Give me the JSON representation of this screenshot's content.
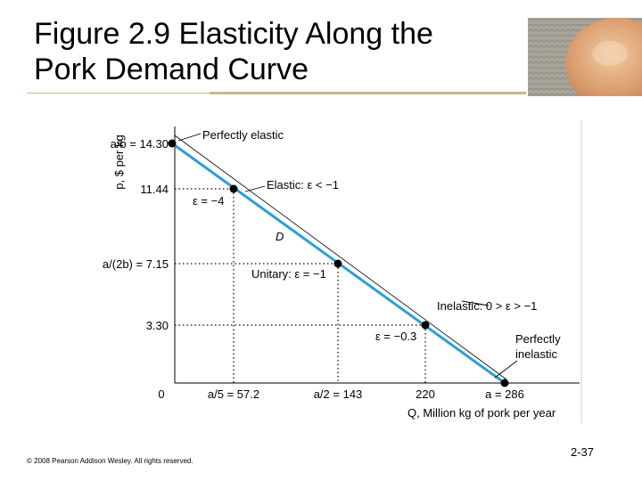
{
  "slide": {
    "title_line1": "Figure 2.9  Elasticity Along the",
    "title_line2": "Pork Demand Curve",
    "copyright": "© 2008 Pearson Addison Wesley. All rights reserved.",
    "slide_number": "2-37"
  },
  "colors": {
    "demand_line": "#2a9fd8",
    "title_rule": "#c8b98a"
  },
  "chart_data": {
    "type": "line",
    "xlabel": "Q, Million kg of pork per year",
    "ylabel": "p, $ per kg",
    "xlim": [
      0,
      286
    ],
    "ylim": [
      0,
      14.3
    ],
    "origin_label": "0",
    "y_ticks": [
      {
        "value": 14.3,
        "label": "a/b = 14.30"
      },
      {
        "value": 11.44,
        "label": "11.44"
      },
      {
        "value": 7.15,
        "label": "a/(2b) = 7.15"
      },
      {
        "value": 3.3,
        "label": "3.30"
      }
    ],
    "x_ticks": [
      {
        "value": 57.2,
        "label": "a/5 = 57.2"
      },
      {
        "value": 143,
        "label": "a/2 = 143"
      },
      {
        "value": 220,
        "label": "220"
      },
      {
        "value": 286,
        "label": "a = 286"
      }
    ],
    "series": [
      {
        "name": "D",
        "x": [
          0,
          286
        ],
        "y": [
          14.3,
          0
        ]
      }
    ],
    "points": [
      {
        "x": 0,
        "y": 14.3
      },
      {
        "x": 57.2,
        "y": 11.44,
        "label": "ε = −4"
      },
      {
        "x": 143,
        "y": 7.15,
        "label": "Unitary: ε = −1"
      },
      {
        "x": 220,
        "y": 3.3,
        "label": "ε = −0.3"
      },
      {
        "x": 286,
        "y": 0
      }
    ],
    "region_labels": [
      "Perfectly elastic",
      "Elastic: ε < −1",
      "Inelastic: 0 > ε > −1",
      "Perfectly",
      "inelastic"
    ],
    "grid": false
  }
}
